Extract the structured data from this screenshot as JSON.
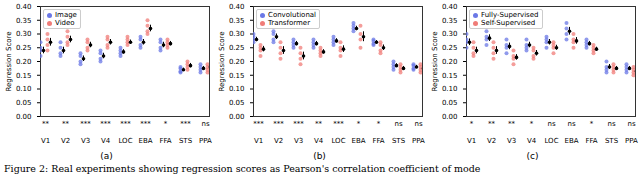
{
  "chart_data": [
    {
      "type": "strip",
      "title": "(a)",
      "y_label": "Regression Score",
      "categories": [
        "V1",
        "V2",
        "V3",
        "V4",
        "LOC",
        "EBA",
        "FFA",
        "STS",
        "PPA"
      ],
      "ylim": [
        0,
        0.4
      ],
      "yticks": [
        {
          "value": 0,
          "label": "0.00"
        },
        {
          "value": 0.05,
          "label": "0.05"
        },
        {
          "value": 0.1,
          "label": "0.10"
        },
        {
          "value": 0.15,
          "label": "0.15"
        },
        {
          "value": 0.2,
          "label": "0.20"
        },
        {
          "value": 0.25,
          "label": "0.25"
        },
        {
          "value": 0.3,
          "label": "0.30"
        },
        {
          "value": 0.35,
          "label": "0.35"
        },
        {
          "value": 0.4,
          "label": "0.40"
        }
      ],
      "legend": "upper left",
      "significance": [
        "**",
        "**",
        "***",
        "***",
        "***",
        "***",
        "*",
        "***",
        "ns"
      ],
      "series": [
        {
          "name": "Image",
          "color": "#6b78e6",
          "values": [
            [
              0.22,
              0.24,
              0.25,
              0.27
            ],
            [
              0.22,
              0.23,
              0.25,
              0.27
            ],
            [
              0.19,
              0.2,
              0.22,
              0.23
            ],
            [
              0.2,
              0.21,
              0.23,
              0.24
            ],
            [
              0.22,
              0.23,
              0.24,
              0.25
            ],
            [
              0.25,
              0.26,
              0.28,
              0.29
            ],
            [
              0.24,
              0.25,
              0.27,
              0.28
            ],
            [
              0.16,
              0.165,
              0.175,
              0.18
            ],
            [
              0.16,
              0.17,
              0.18,
              0.19
            ]
          ],
          "means": [
            0.24,
            0.24,
            0.21,
            0.22,
            0.235,
            0.27,
            0.26,
            0.17,
            0.175
          ],
          "errors": [
            0.012,
            0.012,
            0.01,
            0.01,
            0.008,
            0.01,
            0.01,
            0.006,
            0.007
          ]
        },
        {
          "name": "Video",
          "color": "#f07c78",
          "values": [
            [
              0.24,
              0.26,
              0.28,
              0.3
            ],
            [
              0.26,
              0.27,
              0.29,
              0.31
            ],
            [
              0.24,
              0.25,
              0.27,
              0.28
            ],
            [
              0.25,
              0.26,
              0.28,
              0.29
            ],
            [
              0.26,
              0.27,
              0.28,
              0.29
            ],
            [
              0.3,
              0.31,
              0.33,
              0.35
            ],
            [
              0.25,
              0.26,
              0.27,
              0.28
            ],
            [
              0.17,
              0.18,
              0.19,
              0.2
            ],
            [
              0.16,
              0.17,
              0.18,
              0.19
            ]
          ],
          "means": [
            0.27,
            0.28,
            0.26,
            0.27,
            0.27,
            0.32,
            0.265,
            0.185,
            0.18
          ],
          "errors": [
            0.014,
            0.012,
            0.01,
            0.01,
            0.008,
            0.012,
            0.008,
            0.008,
            0.007
          ]
        }
      ]
    },
    {
      "type": "strip",
      "title": "(b)",
      "y_label": "Regression Score",
      "categories": [
        "V1",
        "V2",
        "V3",
        "V4",
        "LOC",
        "EBA",
        "FFA",
        "STS",
        "PPA"
      ],
      "ylim": [
        0,
        0.4
      ],
      "yticks": [
        {
          "value": 0,
          "label": "0.00"
        },
        {
          "value": 0.05,
          "label": "0.05"
        },
        {
          "value": 0.1,
          "label": "0.10"
        },
        {
          "value": 0.15,
          "label": "0.15"
        },
        {
          "value": 0.2,
          "label": "0.20"
        },
        {
          "value": 0.25,
          "label": "0.25"
        },
        {
          "value": 0.3,
          "label": "0.30"
        },
        {
          "value": 0.35,
          "label": "0.35"
        },
        {
          "value": 0.4,
          "label": "0.40"
        }
      ],
      "legend": "upper left",
      "significance": [
        "***",
        "***",
        "***",
        "**",
        "***",
        "*",
        "*",
        "ns",
        "ns"
      ],
      "series": [
        {
          "name": "Convolutional",
          "color": "#6b78e6",
          "values": [
            [
              0.27,
              0.28,
              0.29,
              0.3
            ],
            [
              0.27,
              0.28,
              0.3,
              0.31
            ],
            [
              0.25,
              0.26,
              0.27,
              0.28
            ],
            [
              0.25,
              0.26,
              0.27,
              0.28
            ],
            [
              0.26,
              0.27,
              0.28,
              0.29
            ],
            [
              0.31,
              0.32,
              0.33,
              0.34
            ],
            [
              0.26,
              0.265,
              0.275,
              0.28
            ],
            [
              0.17,
              0.18,
              0.19,
              0.2
            ],
            [
              0.17,
              0.175,
              0.185,
              0.19
            ]
          ],
          "means": [
            0.28,
            0.29,
            0.265,
            0.265,
            0.275,
            0.32,
            0.27,
            0.185,
            0.18
          ],
          "errors": [
            0.008,
            0.01,
            0.008,
            0.008,
            0.008,
            0.008,
            0.006,
            0.007,
            0.006
          ]
        },
        {
          "name": "Transformer",
          "color": "#f07c78",
          "values": [
            [
              0.22,
              0.24,
              0.25,
              0.26
            ],
            [
              0.21,
              0.23,
              0.25,
              0.27
            ],
            [
              0.19,
              0.21,
              0.23,
              0.25
            ],
            [
              0.22,
              0.23,
              0.24,
              0.25
            ],
            [
              0.22,
              0.24,
              0.25,
              0.27
            ],
            [
              0.25,
              0.28,
              0.3,
              0.33
            ],
            [
              0.23,
              0.24,
              0.26,
              0.27
            ],
            [
              0.16,
              0.17,
              0.18,
              0.19
            ],
            [
              0.16,
              0.17,
              0.18,
              0.19
            ]
          ],
          "means": [
            0.245,
            0.24,
            0.22,
            0.235,
            0.245,
            0.29,
            0.25,
            0.175,
            0.175
          ],
          "errors": [
            0.01,
            0.014,
            0.014,
            0.008,
            0.012,
            0.018,
            0.01,
            0.007,
            0.007
          ]
        }
      ]
    },
    {
      "type": "strip",
      "title": "(c)",
      "y_label": "Regression Score",
      "categories": [
        "V1",
        "V2",
        "V3",
        "V4",
        "LOC",
        "EBA",
        "FFA",
        "STS",
        "PPA"
      ],
      "ylim": [
        0,
        0.4
      ],
      "yticks": [
        {
          "value": 0,
          "label": "0.00"
        },
        {
          "value": 0.05,
          "label": "0.05"
        },
        {
          "value": 0.1,
          "label": "0.10"
        },
        {
          "value": 0.15,
          "label": "0.15"
        },
        {
          "value": 0.2,
          "label": "0.20"
        },
        {
          "value": 0.25,
          "label": "0.25"
        },
        {
          "value": 0.3,
          "label": "0.30"
        },
        {
          "value": 0.35,
          "label": "0.35"
        },
        {
          "value": 0.4,
          "label": "0.40"
        }
      ],
      "legend": "upper left",
      "significance": [
        "*",
        "**",
        "**",
        "*",
        "ns",
        "ns",
        "*",
        "ns",
        "ns"
      ],
      "series": [
        {
          "name": "Fully-Supervised",
          "color": "#6b78e6",
          "values": [
            [
              0.25,
              0.27,
              0.28,
              0.3
            ],
            [
              0.26,
              0.28,
              0.29,
              0.31
            ],
            [
              0.23,
              0.25,
              0.26,
              0.28
            ],
            [
              0.24,
              0.25,
              0.26,
              0.28
            ],
            [
              0.25,
              0.27,
              0.28,
              0.29
            ],
            [
              0.28,
              0.3,
              0.32,
              0.34
            ],
            [
              0.25,
              0.26,
              0.27,
              0.28
            ],
            [
              0.16,
              0.17,
              0.18,
              0.2
            ],
            [
              0.16,
              0.17,
              0.18,
              0.19
            ]
          ],
          "means": [
            0.27,
            0.285,
            0.255,
            0.26,
            0.27,
            0.31,
            0.265,
            0.18,
            0.175
          ],
          "errors": [
            0.012,
            0.012,
            0.012,
            0.01,
            0.01,
            0.014,
            0.008,
            0.009,
            0.007
          ]
        },
        {
          "name": "Self-Supervised",
          "color": "#f07c78",
          "values": [
            [
              0.22,
              0.23,
              0.25,
              0.27
            ],
            [
              0.21,
              0.23,
              0.25,
              0.27
            ],
            [
              0.19,
              0.21,
              0.22,
              0.24
            ],
            [
              0.21,
              0.22,
              0.24,
              0.25
            ],
            [
              0.23,
              0.25,
              0.26,
              0.27
            ],
            [
              0.25,
              0.27,
              0.28,
              0.3
            ],
            [
              0.23,
              0.24,
              0.25,
              0.26
            ],
            [
              0.16,
              0.17,
              0.18,
              0.19
            ],
            [
              0.15,
              0.16,
              0.17,
              0.18
            ]
          ],
          "means": [
            0.24,
            0.24,
            0.215,
            0.23,
            0.25,
            0.275,
            0.245,
            0.175,
            0.165
          ],
          "errors": [
            0.012,
            0.014,
            0.01,
            0.01,
            0.009,
            0.012,
            0.007,
            0.007,
            0.007
          ]
        }
      ]
    }
  ],
  "caption": "Figure 2: Real experiments showing regression scores as Pearson's correlation coefficient of mode"
}
